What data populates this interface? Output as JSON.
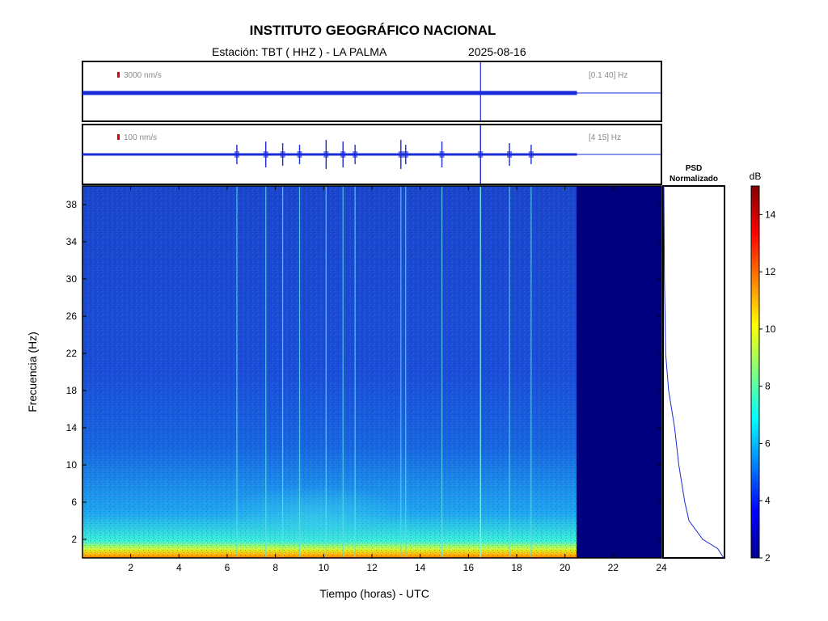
{
  "header": {
    "title": "INSTITUTO GEOGRÁFICO NACIONAL",
    "station": "Estación:  TBT ( HHZ ) - LA PALMA",
    "date": "2025-08-16"
  },
  "chart_data": [
    {
      "type": "line",
      "panel": "waveform-broadband",
      "scale_label": "3000 nm/s",
      "filter_label": "[0.1 40] Hz",
      "x_range": [
        0,
        24
      ],
      "data_end_hour": 20.5,
      "events_hours": [
        16.5
      ]
    },
    {
      "type": "line",
      "panel": "waveform-filtered",
      "scale_label": "100 nm/s",
      "filter_label": "[4 15] Hz",
      "x_range": [
        0,
        24
      ],
      "data_end_hour": 20.5,
      "events_hours": [
        6.4,
        7.6,
        8.3,
        9.0,
        10.1,
        10.8,
        11.3,
        13.2,
        13.4,
        14.9,
        16.5,
        17.7,
        18.6
      ]
    },
    {
      "type": "heatmap",
      "panel": "spectrogram",
      "xlabel": "Tiempo (horas) - UTC",
      "ylabel": "Frecuencia  (Hz)",
      "x_range": [
        0,
        24
      ],
      "y_range": [
        0,
        40
      ],
      "x_ticks": [
        2,
        4,
        6,
        8,
        10,
        12,
        14,
        16,
        18,
        20,
        22,
        24
      ],
      "y_ticks": [
        2,
        6,
        10,
        14,
        18,
        22,
        26,
        30,
        34,
        38
      ],
      "data_end_hour": 20.5,
      "event_lines_hours": [
        6.4,
        7.6,
        8.3,
        9.0,
        10.1,
        10.8,
        11.3,
        13.2,
        13.4,
        14.9,
        16.5,
        17.7,
        18.6
      ]
    },
    {
      "type": "line",
      "panel": "psd",
      "title_lines": [
        "PSD",
        "Normalizado"
      ],
      "freq": [
        40,
        30,
        26,
        22,
        18,
        14,
        10,
        8,
        6,
        4,
        2,
        1,
        0
      ],
      "value": [
        0.0,
        0.01,
        0.02,
        0.03,
        0.08,
        0.18,
        0.25,
        0.3,
        0.35,
        0.42,
        0.65,
        0.9,
        1.0
      ]
    },
    {
      "type": "heatmap",
      "panel": "colorbar",
      "unit_label": "dB",
      "range": [
        2,
        15
      ],
      "ticks": [
        2,
        4,
        6,
        8,
        10,
        12,
        14
      ]
    }
  ],
  "colors": {
    "trace": "#1a2bd8",
    "frame": "#000000",
    "scale_marker": "#dd0000",
    "nodata": "#00007f"
  }
}
